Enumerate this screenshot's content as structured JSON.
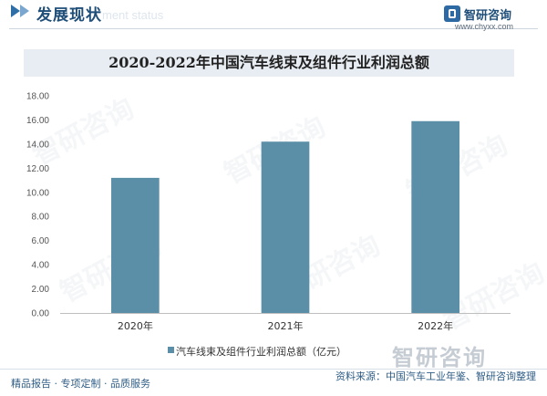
{
  "header": {
    "title": "发展现状",
    "subtitle": "ment status"
  },
  "brand": {
    "name": "智研咨询",
    "url": "www.chyxx.com"
  },
  "chart_data": {
    "type": "bar",
    "title": "2020-2022年中国汽车线束及组件行业利润总额",
    "categories": [
      "2020年",
      "2021年",
      "2022年"
    ],
    "series": [
      {
        "name": "汽车线束及组件行业利润总额（亿元）",
        "values": [
          11.2,
          14.2,
          15.9
        ]
      }
    ],
    "ylim": [
      0,
      18
    ],
    "yticks": [
      "0.00",
      "2.00",
      "4.00",
      "6.00",
      "8.00",
      "10.00",
      "12.00",
      "14.00",
      "16.00",
      "18.00"
    ],
    "grid": false,
    "legend": "bottom",
    "color": "#5b8fa8"
  },
  "watermark": {
    "text": "智研咨询"
  },
  "footer": {
    "left": "精品报告 · 专项定制 · 品质服务",
    "source": "资料来源：中国汽车工业年鉴、智研咨询整理"
  }
}
